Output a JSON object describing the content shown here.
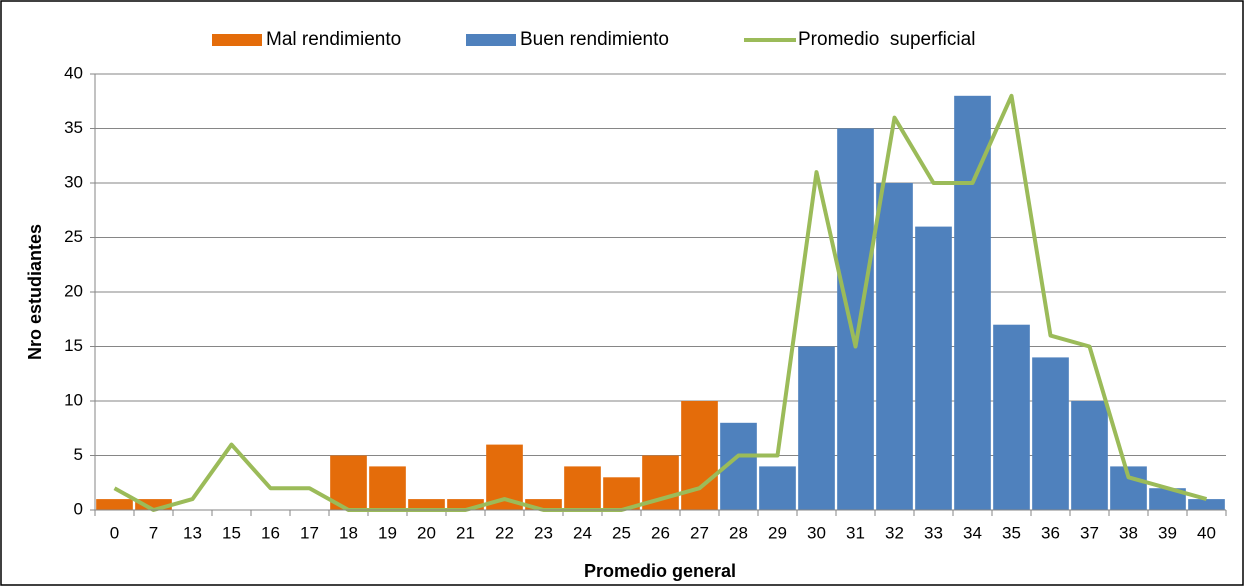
{
  "chart_data": {
    "type": "bar",
    "x_label": "Promedio general",
    "y_label": "Nro estudiantes",
    "categories": [
      "0",
      "7",
      "13",
      "15",
      "16",
      "17",
      "18",
      "19",
      "20",
      "21",
      "22",
      "23",
      "24",
      "25",
      "26",
      "27",
      "28",
      "29",
      "30",
      "31",
      "32",
      "33",
      "34",
      "35",
      "36",
      "37",
      "38",
      "39",
      "40"
    ],
    "series": [
      {
        "name": "Mal rendimiento",
        "type": "bar",
        "color": "#e46c0a",
        "values": [
          1,
          1,
          null,
          null,
          null,
          null,
          5,
          4,
          1,
          1,
          6,
          1,
          4,
          3,
          5,
          10,
          null,
          null,
          null,
          null,
          null,
          null,
          null,
          null,
          null,
          null,
          null,
          null,
          null
        ]
      },
      {
        "name": "Buen rendimiento",
        "type": "bar",
        "color": "#4f81bd",
        "values": [
          null,
          null,
          null,
          null,
          null,
          null,
          null,
          null,
          null,
          null,
          null,
          null,
          null,
          null,
          null,
          null,
          8,
          4,
          15,
          35,
          30,
          26,
          38,
          17,
          14,
          10,
          4,
          2,
          1
        ]
      },
      {
        "name": "Promedio  superficial",
        "type": "line",
        "color": "#9bbb59",
        "values": [
          2,
          0,
          1,
          6,
          2,
          2,
          0,
          0,
          0,
          0,
          1,
          0,
          0,
          0,
          1,
          2,
          5,
          5,
          31,
          15,
          36,
          30,
          30,
          38,
          16,
          15,
          3,
          2,
          1
        ]
      }
    ],
    "ylim": [
      0,
      40
    ],
    "yticks": [
      0,
      5,
      10,
      15,
      20,
      25,
      30,
      35,
      40
    ],
    "grid": true,
    "legend": "top"
  }
}
